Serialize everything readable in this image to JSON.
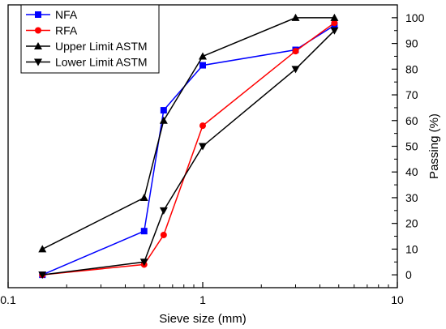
{
  "chart_data": {
    "type": "line",
    "title": "",
    "xlabel": "Sieve size (mm)",
    "ylabel": "Passing (%)",
    "x_scale": "log",
    "xlim": [
      0.1,
      10
    ],
    "ylim": [
      -5,
      105
    ],
    "x_ticks": [
      {
        "value": 0.1,
        "label": "0.1"
      },
      {
        "value": 1,
        "label": "1"
      },
      {
        "value": 10,
        "label": "10"
      }
    ],
    "y_ticks": [
      {
        "value": 0,
        "label": "0"
      },
      {
        "value": 10,
        "label": "10"
      },
      {
        "value": 20,
        "label": "20"
      },
      {
        "value": 30,
        "label": "30"
      },
      {
        "value": 40,
        "label": "40"
      },
      {
        "value": 50,
        "label": "50"
      },
      {
        "value": 60,
        "label": "60"
      },
      {
        "value": 70,
        "label": "70"
      },
      {
        "value": 80,
        "label": "80"
      },
      {
        "value": 90,
        "label": "90"
      },
      {
        "value": 100,
        "label": "100"
      }
    ],
    "y_axis_side": "right",
    "grid": false,
    "legend_position": "top-left",
    "series": [
      {
        "name": "NFA",
        "color": "#0000ff",
        "marker": "square",
        "points": [
          [
            0.15,
            0
          ],
          [
            0.5,
            17
          ],
          [
            0.63,
            64
          ],
          [
            1.0,
            81.5
          ],
          [
            3.0,
            87.5
          ],
          [
            4.75,
            97
          ]
        ]
      },
      {
        "name": "RFA",
        "color": "#ff0000",
        "marker": "circle",
        "points": [
          [
            0.15,
            0
          ],
          [
            0.5,
            4
          ],
          [
            0.63,
            15.5
          ],
          [
            1.0,
            58
          ],
          [
            3.0,
            87
          ],
          [
            4.75,
            98
          ]
        ]
      },
      {
        "name": "Upper Limit ASTM",
        "color": "#000000",
        "marker": "triangle-up",
        "points": [
          [
            0.15,
            10
          ],
          [
            0.5,
            30
          ],
          [
            0.63,
            60
          ],
          [
            1.0,
            85
          ],
          [
            3.0,
            100
          ],
          [
            4.75,
            100
          ]
        ]
      },
      {
        "name": "Lower Limit ASTM",
        "color": "#000000",
        "marker": "triangle-down",
        "points": [
          [
            0.15,
            0
          ],
          [
            0.5,
            5
          ],
          [
            0.63,
            25
          ],
          [
            1.0,
            50
          ],
          [
            3.0,
            80
          ],
          [
            4.75,
            95
          ]
        ]
      }
    ]
  }
}
